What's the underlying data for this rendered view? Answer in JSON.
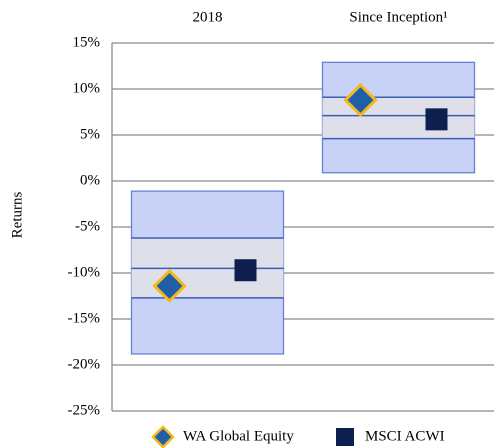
{
  "chart_data": {
    "type": "range",
    "y_label": "Returns",
    "categories": [
      "2018",
      "Since Inception¹"
    ],
    "range_high": [
      -1.1,
      12.9
    ],
    "range_upper": [
      -6.2,
      9.1
    ],
    "range_median": [
      -9.5,
      7.1
    ],
    "range_lower": [
      -12.7,
      4.6
    ],
    "range_low": [
      -18.8,
      0.9
    ],
    "range_color": "#c8d2f6",
    "band_color": "#dedfe8",
    "series": [
      {
        "name": "WA Global Equity",
        "color": "#1f5fa8",
        "marker": "diamond",
        "values": [
          -11.4,
          8.8
        ]
      },
      {
        "name": "MSCI ACWI",
        "color": "#0d1f4f",
        "marker": "square",
        "values": [
          -9.7,
          6.7
        ]
      }
    ],
    "ylim": [
      -25,
      15
    ],
    "yticks": [
      {
        "value": -25,
        "label": "-25%"
      },
      {
        "value": -20,
        "label": "-20%"
      },
      {
        "value": -15,
        "label": "-15%"
      },
      {
        "value": -10,
        "label": "-10%"
      },
      {
        "value": -5,
        "label": "-5%"
      },
      {
        "value": 0,
        "label": "0%"
      },
      {
        "value": 5,
        "label": "5%"
      },
      {
        "value": 10,
        "label": "10%"
      },
      {
        "value": 15,
        "label": "15%"
      }
    ],
    "grid": true,
    "legend": "bottom"
  }
}
